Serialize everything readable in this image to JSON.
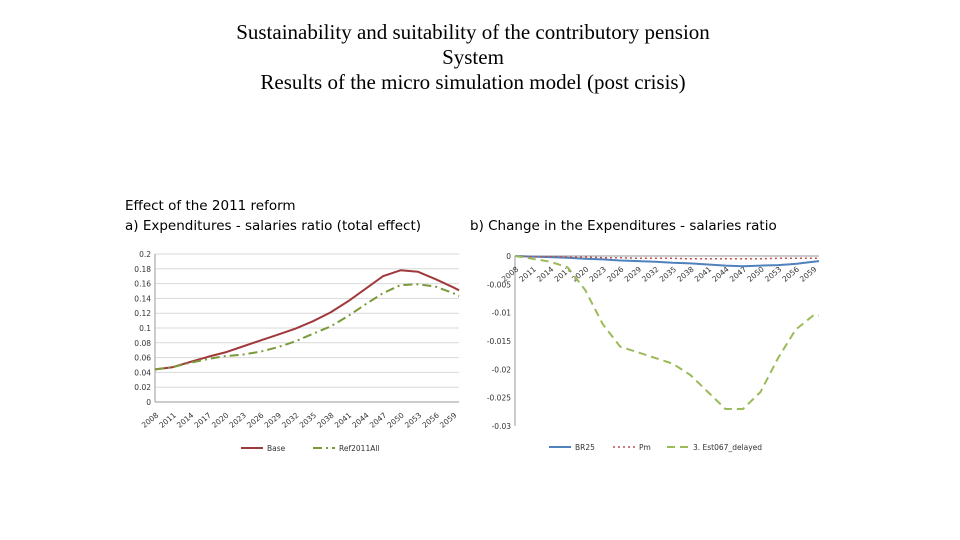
{
  "title": {
    "line1": "Sustainability and suitability of the contributory pension",
    "line2": "System",
    "line3": "Results of the micro simulation model (post crisis)"
  },
  "captions": {
    "left_line1": "Effect of the 2011 reform",
    "left_line2": "a) Expenditures - salaries ratio (total effect)",
    "right": "b) Change in the Expenditures - salaries ratio"
  },
  "chart_data": [
    {
      "type": "line",
      "title": "a) Expenditures - salaries ratio (total effect)",
      "xlabel": "",
      "ylabel": "",
      "ylim": [
        0,
        0.2
      ],
      "yticks": [
        "0.2",
        "0.18",
        "0.16",
        "0.14",
        "0.12",
        "0.1",
        "0.08",
        "0.06",
        "0.04",
        "0.02",
        "0"
      ],
      "xticks": [
        "2008",
        "2011",
        "2014",
        "2017",
        "2020",
        "2023",
        "2026",
        "2029",
        "2032",
        "2035",
        "2038",
        "2041",
        "2044",
        "2047",
        "2050",
        "2053",
        "2056",
        "2059"
      ],
      "x": [
        2008,
        2011,
        2014,
        2017,
        2020,
        2023,
        2026,
        2029,
        2032,
        2035,
        2038,
        2041,
        2044,
        2047,
        2050,
        2053,
        2056,
        2059,
        2060
      ],
      "series": [
        {
          "name": "Base",
          "color": "#a0393b",
          "style": "solid",
          "values": [
            0.044,
            0.047,
            0.054,
            0.061,
            0.067,
            0.075,
            0.083,
            0.091,
            0.099,
            0.109,
            0.121,
            0.136,
            0.153,
            0.17,
            0.178,
            0.176,
            0.166,
            0.155,
            0.151
          ]
        },
        {
          "name": "Ref2011All",
          "color": "#7a9a3a",
          "style": "dashdot",
          "values": [
            0.044,
            0.047,
            0.053,
            0.058,
            0.062,
            0.064,
            0.068,
            0.074,
            0.082,
            0.092,
            0.102,
            0.116,
            0.132,
            0.147,
            0.158,
            0.159,
            0.156,
            0.147,
            0.143
          ]
        }
      ],
      "legend": "bottom"
    },
    {
      "type": "line",
      "title": "b) Change in the Expenditures - salaries ratio",
      "xlabel": "",
      "ylabel": "",
      "ylim": [
        -0.03,
        0
      ],
      "yticks": [
        "0",
        "-0.005",
        "-0.01",
        "-0.015",
        "-0.02",
        "-0.025",
        "-0.03"
      ],
      "xticks": [
        "2008",
        "2011",
        "2014",
        "2017",
        "2020",
        "2023",
        "2026",
        "2029",
        "2032",
        "2035",
        "2038",
        "2041",
        "2044",
        "2047",
        "2050",
        "2053",
        "2056",
        "2059"
      ],
      "x": [
        2008,
        2011,
        2014,
        2017,
        2020,
        2023,
        2026,
        2029,
        2032,
        2035,
        2038,
        2041,
        2044,
        2047,
        2050,
        2053,
        2056,
        2059,
        2060
      ],
      "series": [
        {
          "name": "BR25",
          "color": "#4f81bd",
          "style": "solid",
          "values": [
            0,
            -0.0001,
            -0.0002,
            -0.0003,
            -0.0005,
            -0.0006,
            -0.0008,
            -0.0009,
            -0.001,
            -0.0012,
            -0.0013,
            -0.0015,
            -0.0017,
            -0.0018,
            -0.0017,
            -0.0016,
            -0.0014,
            -0.001,
            -0.0009
          ]
        },
        {
          "name": "Pm",
          "color": "#c0504d",
          "style": "dotted",
          "values": [
            0,
            -0.0001,
            -0.0001,
            -0.0002,
            -0.0002,
            -0.0003,
            -0.0003,
            -0.0004,
            -0.0004,
            -0.0004,
            -0.0005,
            -0.0005,
            -0.0005,
            -0.0005,
            -0.0005,
            -0.0004,
            -0.0004,
            -0.0004,
            -0.0004
          ]
        },
        {
          "name": "3. Est067_delayed",
          "color": "#9bbb59",
          "style": "dashed",
          "values": [
            0,
            -0.0005,
            -0.001,
            -0.002,
            -0.006,
            -0.012,
            -0.016,
            -0.017,
            -0.018,
            -0.019,
            -0.021,
            -0.024,
            -0.027,
            -0.027,
            -0.024,
            -0.018,
            -0.013,
            -0.0105,
            -0.0105
          ]
        }
      ],
      "legend": "bottom"
    }
  ]
}
